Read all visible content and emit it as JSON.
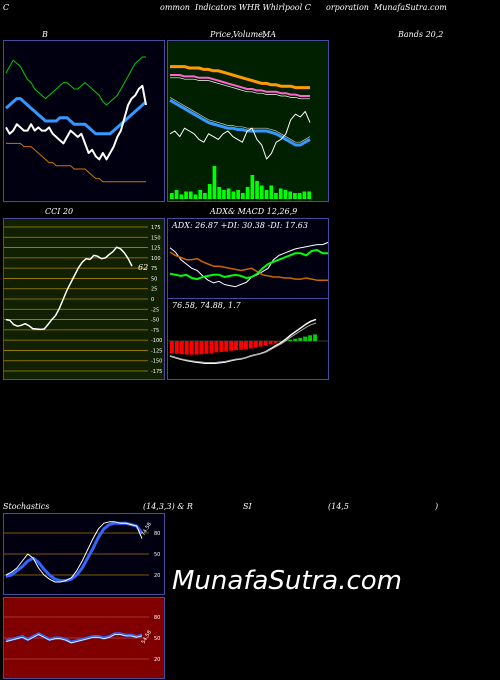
{
  "header": {
    "left_c": "C",
    "mid_text": "ommon  Indicators WHR Whirlpool C",
    "right_text": "orporation  MunafaSutra.com"
  },
  "titles": {
    "bands_b": "B",
    "bands_right": "Bands 20,2",
    "price_text": "Price,",
    "volume_text": "Volume,",
    "ma_text": "MA",
    "cci": "CCI 20",
    "adx_macd_a": "ADX",
    "adx_macd_b": "& MACD 12,26,9",
    "stoch_a": "Stochastics",
    "stoch_b": "(14,3,3) & R",
    "stoch_c": "SI",
    "stoch_d": "(14,5",
    "stoch_e": ")"
  },
  "adx_readout": "ADX: 26.87  +DI: 30.38  -DI: 17.63",
  "macd_readout": "76.58,  74.88,  1.7",
  "cci_value_label": "62",
  "stoch_value_label": "74.58",
  "rsi_value_label": "54.58",
  "watermark": "MunafaSutra.com",
  "cci_ticks": [
    "175",
    "150",
    "125",
    "100",
    "75",
    "50",
    "25",
    "0",
    "-25",
    "-50",
    "-75",
    "-100",
    "-125",
    "-150",
    "-175"
  ],
  "stoch_ticks": [
    "80",
    "50",
    "20"
  ],
  "rsi_ticks": [
    "80",
    "50",
    "20"
  ],
  "colors": {
    "bands_bg": "#000010",
    "price_bg": "#002000",
    "cci_bg": "#102000",
    "adx_bg": "#000010",
    "stoch_bg": "#000010",
    "rsi_bg": "#800000",
    "bands_mid": "#3399ff",
    "bands_upper": "#00cc00",
    "bands_lower": "#cc7700",
    "price_line": "#ffffff",
    "ma_orange": "#ff9900",
    "ma_pink": "#ff66cc",
    "ma_blue": "#3399ff",
    "volume": "#00ff00",
    "cci_grid": "#aa8800",
    "macd_hist_neg": "#ff0000",
    "macd_hist_pos": "#00cc00",
    "di_plus": "#00ff00",
    "di_minus": "#cc6600",
    "adx_line": "#ffffff"
  },
  "chart_data": [
    {
      "type": "line",
      "panel": "bollinger",
      "series": [
        {
          "values": [
            80,
            84,
            88,
            86,
            84,
            80,
            76,
            74,
            70,
            68,
            66,
            64,
            66,
            68,
            70,
            72,
            74,
            74,
            72,
            70,
            70,
            72,
            74,
            72,
            70,
            68,
            66,
            62,
            60,
            62,
            64,
            66,
            70,
            74,
            78,
            82,
            86,
            88,
            90,
            90
          ]
        },
        {
          "values": [
            58,
            60,
            62,
            64,
            64,
            62,
            60,
            58,
            56,
            54,
            52,
            50,
            50,
            50,
            50,
            52,
            52,
            52,
            50,
            48,
            48,
            48,
            48,
            46,
            44,
            42,
            42,
            42,
            42,
            42,
            44,
            46,
            48,
            50,
            52,
            54,
            56,
            58,
            60,
            62
          ]
        },
        {
          "values": [
            36,
            36,
            36,
            36,
            36,
            34,
            34,
            34,
            32,
            30,
            28,
            26,
            24,
            24,
            22,
            22,
            22,
            22,
            22,
            20,
            20,
            20,
            20,
            18,
            16,
            14,
            14,
            12,
            12,
            12,
            12,
            12,
            12,
            12,
            12,
            12,
            12,
            12,
            12,
            12
          ]
        },
        {
          "values": [
            46,
            42,
            44,
            48,
            46,
            44,
            44,
            48,
            44,
            46,
            44,
            44,
            46,
            42,
            40,
            38,
            36,
            40,
            44,
            42,
            40,
            42,
            36,
            30,
            32,
            28,
            26,
            30,
            26,
            30,
            34,
            40,
            44,
            52,
            60,
            64,
            66,
            70,
            72,
            60
          ]
        }
      ]
    },
    {
      "type": "line",
      "panel": "price_ma_volume",
      "series": [
        {
          "values": [
            96,
            96,
            96,
            96,
            95,
            95,
            95,
            94,
            94,
            93,
            93,
            92,
            91,
            90,
            89,
            88,
            87,
            86,
            85,
            84,
            84,
            83,
            83,
            82,
            82,
            82,
            81,
            81,
            81,
            81
          ]
        },
        {
          "values": [
            90,
            90,
            90,
            89,
            89,
            89,
            88,
            88,
            88,
            87,
            86,
            85,
            84,
            83,
            82,
            81,
            80,
            80,
            79,
            79,
            78,
            78,
            78,
            77,
            77,
            76,
            76,
            75,
            75,
            75
          ]
        },
        {
          "values": [
            72,
            70,
            68,
            66,
            64,
            62,
            60,
            58,
            56,
            55,
            54,
            53,
            52,
            52,
            51,
            51,
            50,
            50,
            50,
            50,
            50,
            49,
            48,
            46,
            44,
            42,
            40,
            40,
            42,
            44
          ]
        },
        {
          "values": [
            48,
            50,
            46,
            52,
            50,
            48,
            44,
            42,
            48,
            46,
            44,
            48,
            50,
            46,
            44,
            42,
            50,
            52,
            44,
            40,
            30,
            34,
            42,
            44,
            48,
            58,
            62,
            60,
            64,
            56
          ]
        },
        {
          "values": [
            4,
            6,
            3,
            5,
            5,
            3,
            6,
            4,
            10,
            22,
            8,
            6,
            7,
            5,
            6,
            4,
            8,
            16,
            12,
            9,
            6,
            9,
            4,
            7,
            6,
            5,
            4,
            4,
            5,
            5
          ]
        }
      ]
    },
    {
      "type": "line",
      "panel": "cci",
      "ylim": [
        -175,
        175
      ],
      "series": [
        {
          "values": [
            -50,
            -52,
            -62,
            -66,
            -64,
            -60,
            -65,
            -72,
            -73,
            -74,
            -73,
            -62,
            -50,
            -40,
            -22,
            0,
            22,
            40,
            58,
            76,
            90,
            98,
            96,
            106,
            104,
            98,
            100,
            108,
            115,
            126,
            122,
            112,
            98,
            80
          ]
        }
      ]
    },
    {
      "type": "line",
      "panel": "adx",
      "series": [
        {
          "values": [
            0.8,
            0.72,
            0.58,
            0.5,
            0.42,
            0.38,
            0.28,
            0.2,
            0.15,
            0.18,
            0.12,
            0.1,
            0.08,
            0.12,
            0.16,
            0.26,
            0.3,
            0.36,
            0.42,
            0.58,
            0.66,
            0.7,
            0.74,
            0.78,
            0.8,
            0.82,
            0.84,
            0.86,
            0.86,
            0.9
          ]
        },
        {
          "values": [
            0.32,
            0.3,
            0.28,
            0.3,
            0.24,
            0.22,
            0.26,
            0.28,
            0.3,
            0.3,
            0.26,
            0.28,
            0.3,
            0.28,
            0.24,
            0.26,
            0.32,
            0.42,
            0.5,
            0.54,
            0.58,
            0.62,
            0.66,
            0.7,
            0.7,
            0.66,
            0.74,
            0.76,
            0.7,
            0.7
          ]
        },
        {
          "values": [
            0.72,
            0.66,
            0.62,
            0.58,
            0.58,
            0.6,
            0.54,
            0.5,
            0.46,
            0.46,
            0.44,
            0.42,
            0.4,
            0.38,
            0.4,
            0.42,
            0.36,
            0.3,
            0.28,
            0.26,
            0.26,
            0.24,
            0.24,
            0.22,
            0.22,
            0.24,
            0.22,
            0.2,
            0.2,
            0.2
          ]
        }
      ]
    },
    {
      "type": "bar",
      "panel": "macd",
      "series": [
        {
          "values": [
            -0.55,
            -0.58,
            -0.6,
            -0.62,
            -0.62,
            -0.62,
            -0.6,
            -0.58,
            -0.56,
            -0.52,
            -0.5,
            -0.48,
            -0.44,
            -0.42,
            -0.4,
            -0.38,
            -0.34,
            -0.3,
            -0.26,
            -0.22,
            -0.16,
            -0.1,
            -0.04,
            0.02,
            0.06,
            0.1,
            0.14,
            0.2,
            0.26,
            0.3
          ]
        },
        {
          "values": [
            -0.5,
            -0.55,
            -0.6,
            -0.64,
            -0.67,
            -0.7,
            -0.72,
            -0.74,
            -0.74,
            -0.74,
            -0.72,
            -0.7,
            -0.66,
            -0.62,
            -0.6,
            -0.56,
            -0.5,
            -0.46,
            -0.42,
            -0.36,
            -0.26,
            -0.16,
            -0.06,
            0.06,
            0.2,
            0.32,
            0.44,
            0.56,
            0.66,
            0.72
          ]
        }
      ]
    },
    {
      "type": "line",
      "panel": "stochastics",
      "ylim": [
        0,
        100
      ],
      "series": [
        {
          "values": [
            20,
            24,
            30,
            40,
            50,
            44,
            30,
            20,
            14,
            10,
            10,
            12,
            16,
            26,
            40,
            56,
            72,
            86,
            94,
            96,
            96,
            94,
            94,
            92,
            90,
            72
          ]
        },
        {
          "values": [
            18,
            20,
            26,
            32,
            40,
            44,
            38,
            28,
            20,
            14,
            12,
            12,
            14,
            20,
            30,
            44,
            58,
            74,
            86,
            92,
            94,
            94,
            94,
            92,
            90,
            80
          ]
        }
      ]
    },
    {
      "type": "line",
      "panel": "rsi",
      "ylim": [
        0,
        100
      ],
      "series": [
        {
          "values": [
            46,
            48,
            50,
            52,
            48,
            52,
            56,
            52,
            48,
            50,
            50,
            48,
            44,
            46,
            48,
            50,
            52,
            52,
            50,
            52,
            56,
            56,
            54,
            54,
            52,
            54
          ]
        }
      ]
    }
  ]
}
